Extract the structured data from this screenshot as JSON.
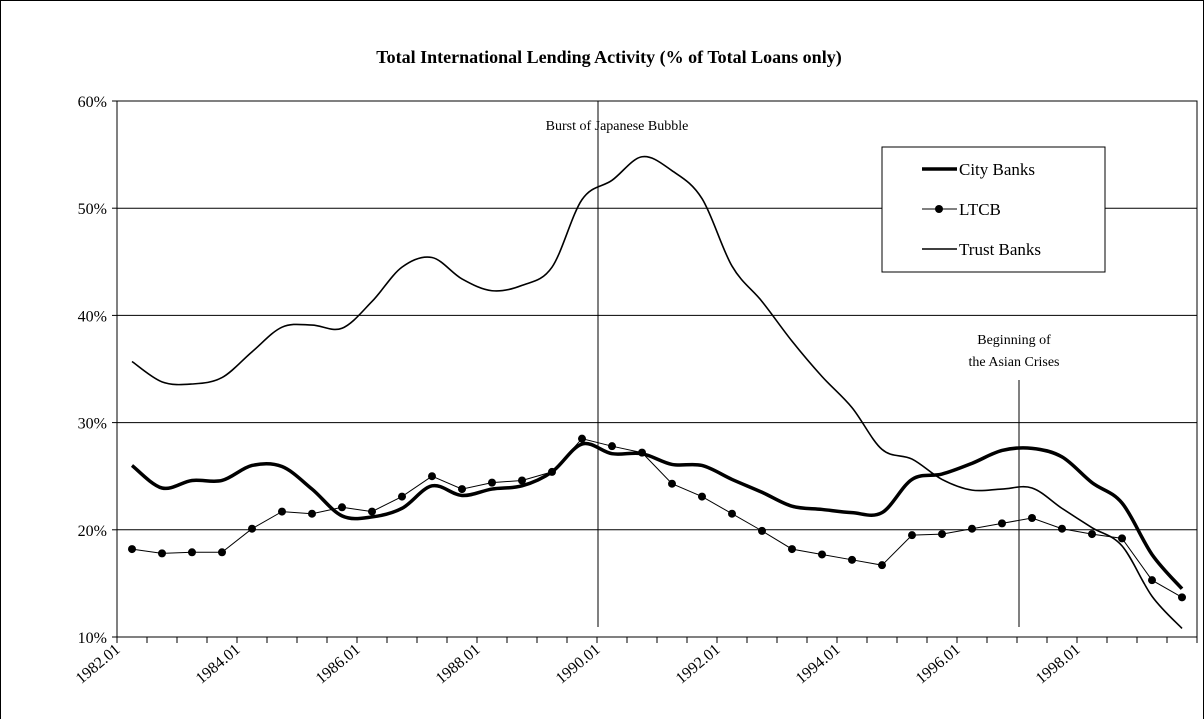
{
  "chart_data": {
    "type": "line",
    "title": "Total International Lending  Activity  (% of Total Loans only)",
    "categories": [
      "1982.01",
      null,
      null,
      null,
      "1984.01",
      null,
      null,
      null,
      "1986.01",
      null,
      null,
      null,
      "1988.01",
      null,
      null,
      null,
      "1990.01",
      null,
      null,
      null,
      "1992.01",
      null,
      null,
      null,
      "1994.01",
      null,
      null,
      null,
      "1996.01",
      null,
      null,
      null,
      "1998.01",
      null,
      null,
      null
    ],
    "series": [
      {
        "name": "City Banks",
        "color": "#000000",
        "values": [
          26.0,
          23.9,
          24.6,
          24.6,
          26.0,
          25.9,
          23.8,
          21.3,
          21.2,
          22.0,
          24.1,
          23.2,
          23.8,
          24.1,
          25.4,
          28.0,
          27.1,
          27.1,
          26.1,
          26.0,
          24.7,
          23.5,
          22.2,
          21.9,
          21.6,
          21.6,
          24.7,
          25.2,
          26.2,
          27.4,
          27.6,
          26.8,
          24.4,
          22.5,
          17.7,
          14.5
        ]
      },
      {
        "name": "LTCB",
        "color": "#000000",
        "values": [
          18.2,
          17.8,
          17.9,
          17.9,
          20.1,
          21.7,
          21.5,
          22.1,
          21.7,
          23.1,
          25.0,
          23.8,
          24.4,
          24.6,
          25.4,
          28.5,
          27.8,
          27.2,
          24.3,
          23.1,
          21.5,
          19.9,
          18.2,
          17.7,
          17.2,
          16.7,
          19.5,
          19.6,
          20.1,
          20.6,
          21.1,
          20.1,
          19.6,
          19.2,
          15.3,
          13.7
        ]
      },
      {
        "name": "Trust Banks",
        "color": "#000000",
        "values": [
          35.7,
          33.8,
          33.6,
          34.2,
          36.6,
          38.9,
          39.1,
          38.8,
          41.3,
          44.5,
          45.4,
          43.4,
          42.3,
          42.8,
          44.5,
          50.8,
          52.6,
          54.8,
          53.5,
          50.9,
          44.6,
          41.3,
          37.6,
          34.3,
          31.4,
          27.5,
          26.6,
          24.7,
          23.7,
          23.8,
          23.9,
          22.0,
          20.2,
          18.5,
          13.8,
          10.8
        ]
      }
    ],
    "ylim": [
      10,
      60
    ],
    "yticks": [
      {
        "value": 10,
        "label": "10%"
      },
      {
        "value": 20,
        "label": "20%"
      },
      {
        "value": 30,
        "label": "30%"
      },
      {
        "value": 40,
        "label": "40%"
      },
      {
        "value": 50,
        "label": "50%"
      },
      {
        "value": 60,
        "label": "60%"
      }
    ],
    "grid": true,
    "legend": "upper right",
    "annotations": [
      "Burst of Japanese Bubble",
      "Beginning of",
      "the Asian Crises"
    ]
  }
}
